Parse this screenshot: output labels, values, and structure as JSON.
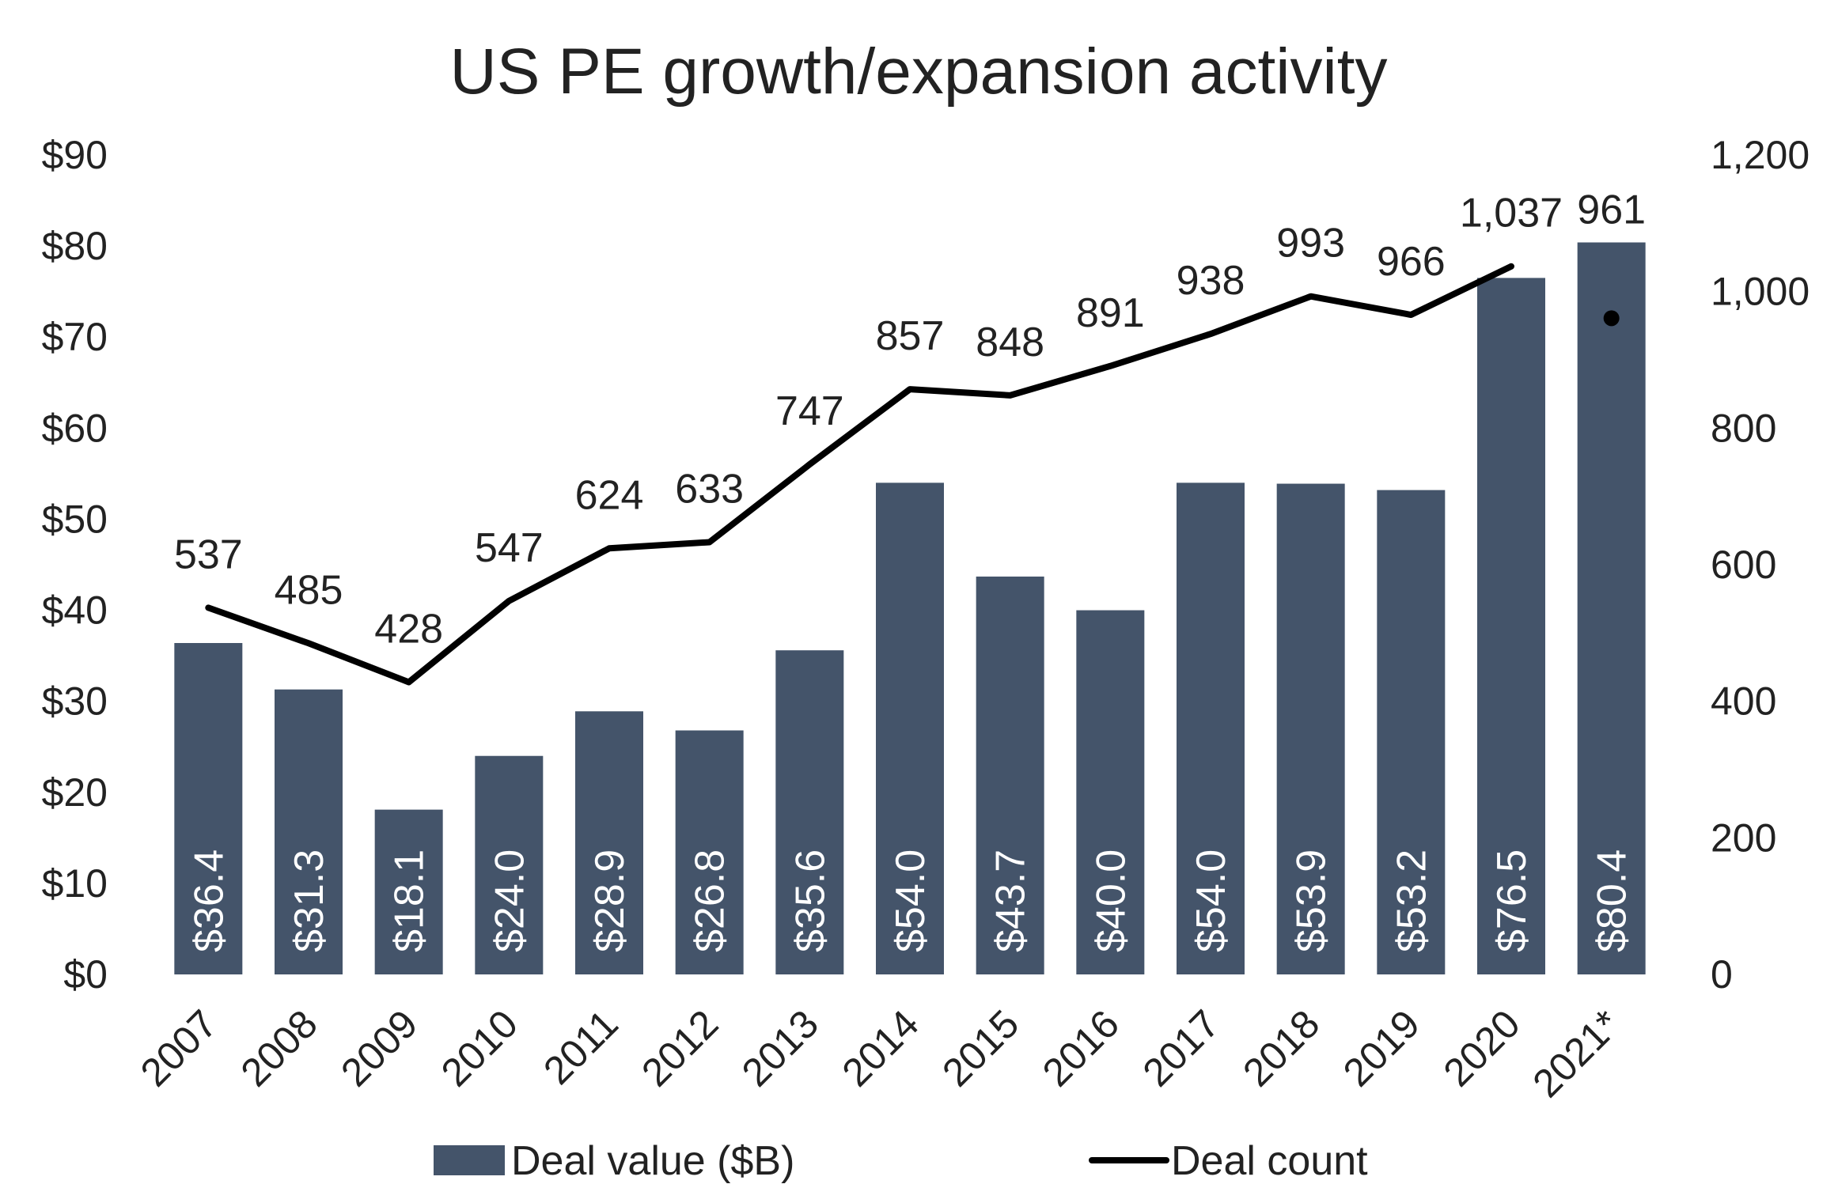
{
  "chart_data": {
    "type": "bar",
    "title": "US PE growth/expansion activity",
    "categories": [
      "2007",
      "2008",
      "2009",
      "2010",
      "2011",
      "2012",
      "2013",
      "2014",
      "2015",
      "2016",
      "2017",
      "2018",
      "2019",
      "2020",
      "2021*"
    ],
    "series": [
      {
        "name": "Deal value ($B)",
        "type": "bar",
        "axis": "left",
        "values": [
          36.4,
          31.3,
          18.1,
          24.0,
          28.9,
          26.8,
          35.6,
          54.0,
          43.7,
          40.0,
          54.0,
          53.9,
          53.2,
          76.5,
          80.4
        ],
        "labels": [
          "$36.4",
          "$31.3",
          "$18.1",
          "$24.0",
          "$28.9",
          "$26.8",
          "$35.6",
          "$54.0",
          "$43.7",
          "$40.0",
          "$54.0",
          "$53.9",
          "$53.2",
          "$76.5",
          "$80.4"
        ],
        "color": "#44546A"
      },
      {
        "name": "Deal count",
        "type": "line",
        "axis": "right",
        "values": [
          537,
          485,
          428,
          547,
          624,
          633,
          747,
          857,
          848,
          891,
          938,
          993,
          966,
          1037,
          961
        ],
        "labels": [
          "537",
          "485",
          "428",
          "547",
          "624",
          "633",
          "747",
          "857",
          "848",
          "891",
          "938",
          "993",
          "966",
          "1,037",
          "961"
        ],
        "color": "#000000",
        "line_points": 14,
        "last_point_marker": true
      }
    ],
    "y_left": {
      "min": 0,
      "max": 90,
      "ticks": [
        "$0",
        "$10",
        "$20",
        "$30",
        "$40",
        "$50",
        "$60",
        "$70",
        "$80",
        "$90"
      ]
    },
    "y_right": {
      "min": 0,
      "max": 1200,
      "ticks": [
        "0",
        "200",
        "400",
        "600",
        "800",
        "1,000",
        "1,200"
      ]
    },
    "grid": false,
    "legend": "bottom"
  }
}
